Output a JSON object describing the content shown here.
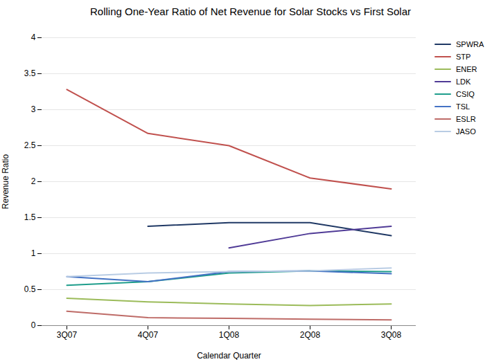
{
  "chart_data": {
    "type": "line",
    "title": "Rolling One-Year Ratio of Net Revenue for Solar Stocks vs First Solar",
    "xlabel": "Calendar Quarter",
    "ylabel": "Revenue Ratio",
    "categories": [
      "3Q07",
      "4Q07",
      "1Q08",
      "2Q08",
      "3Q08"
    ],
    "series": [
      {
        "name": "SPWRA",
        "color": "#1F3864",
        "values": [
          null,
          1.38,
          1.43,
          1.43,
          1.25
        ]
      },
      {
        "name": "STP",
        "color": "#C0504D",
        "values": [
          3.28,
          2.67,
          2.5,
          2.05,
          1.9
        ]
      },
      {
        "name": "ENER",
        "color": "#9BBB59",
        "values": [
          0.38,
          0.33,
          0.3,
          0.28,
          0.3
        ]
      },
      {
        "name": "LDK",
        "color": "#4F3A96",
        "values": [
          null,
          null,
          1.08,
          1.28,
          1.38
        ]
      },
      {
        "name": "CSIQ",
        "color": "#1E9D8B",
        "values": [
          0.56,
          0.61,
          0.73,
          0.76,
          0.75
        ]
      },
      {
        "name": "TSL",
        "color": "#4472C4",
        "values": [
          0.68,
          0.61,
          0.75,
          0.76,
          0.72
        ]
      },
      {
        "name": "ESLR",
        "color": "#BE6B67",
        "values": [
          0.2,
          0.11,
          0.1,
          0.09,
          0.08
        ]
      },
      {
        "name": "JASO",
        "color": "#B8CCE4",
        "values": [
          0.68,
          0.73,
          0.75,
          0.76,
          0.8
        ]
      }
    ],
    "ylim": [
      0,
      4.0
    ],
    "yticks": [
      0,
      0.5,
      1.0,
      1.5,
      2.0,
      2.5,
      3.0,
      3.5,
      4.0
    ],
    "grid": "y",
    "legend": "right"
  }
}
